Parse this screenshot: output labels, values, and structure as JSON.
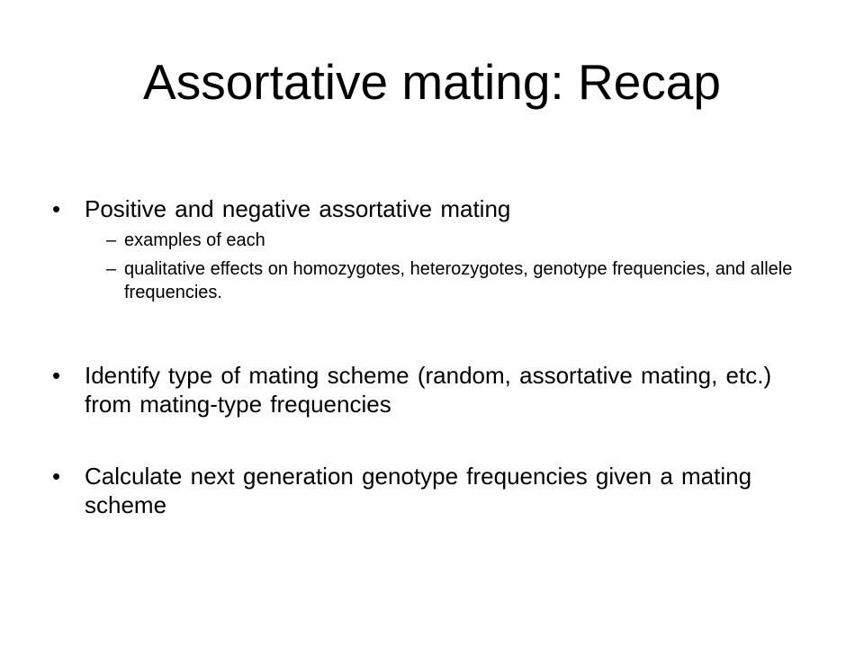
{
  "slide": {
    "title": "Assortative mating: Recap",
    "bullet_glyph": "•",
    "sub_glyph": "–",
    "bullets": [
      {
        "text": "Positive and negative assortative mating",
        "subitems": [
          "examples of each",
          "qualitative effects on homozygotes, heterozygotes, genotype frequencies, and allele frequencies."
        ]
      },
      {
        "text": "Identify type of mating scheme (random, assortative mating, etc.) from mating-type frequencies"
      },
      {
        "text": "Calculate next generation genotype frequencies given a mating scheme"
      }
    ]
  }
}
